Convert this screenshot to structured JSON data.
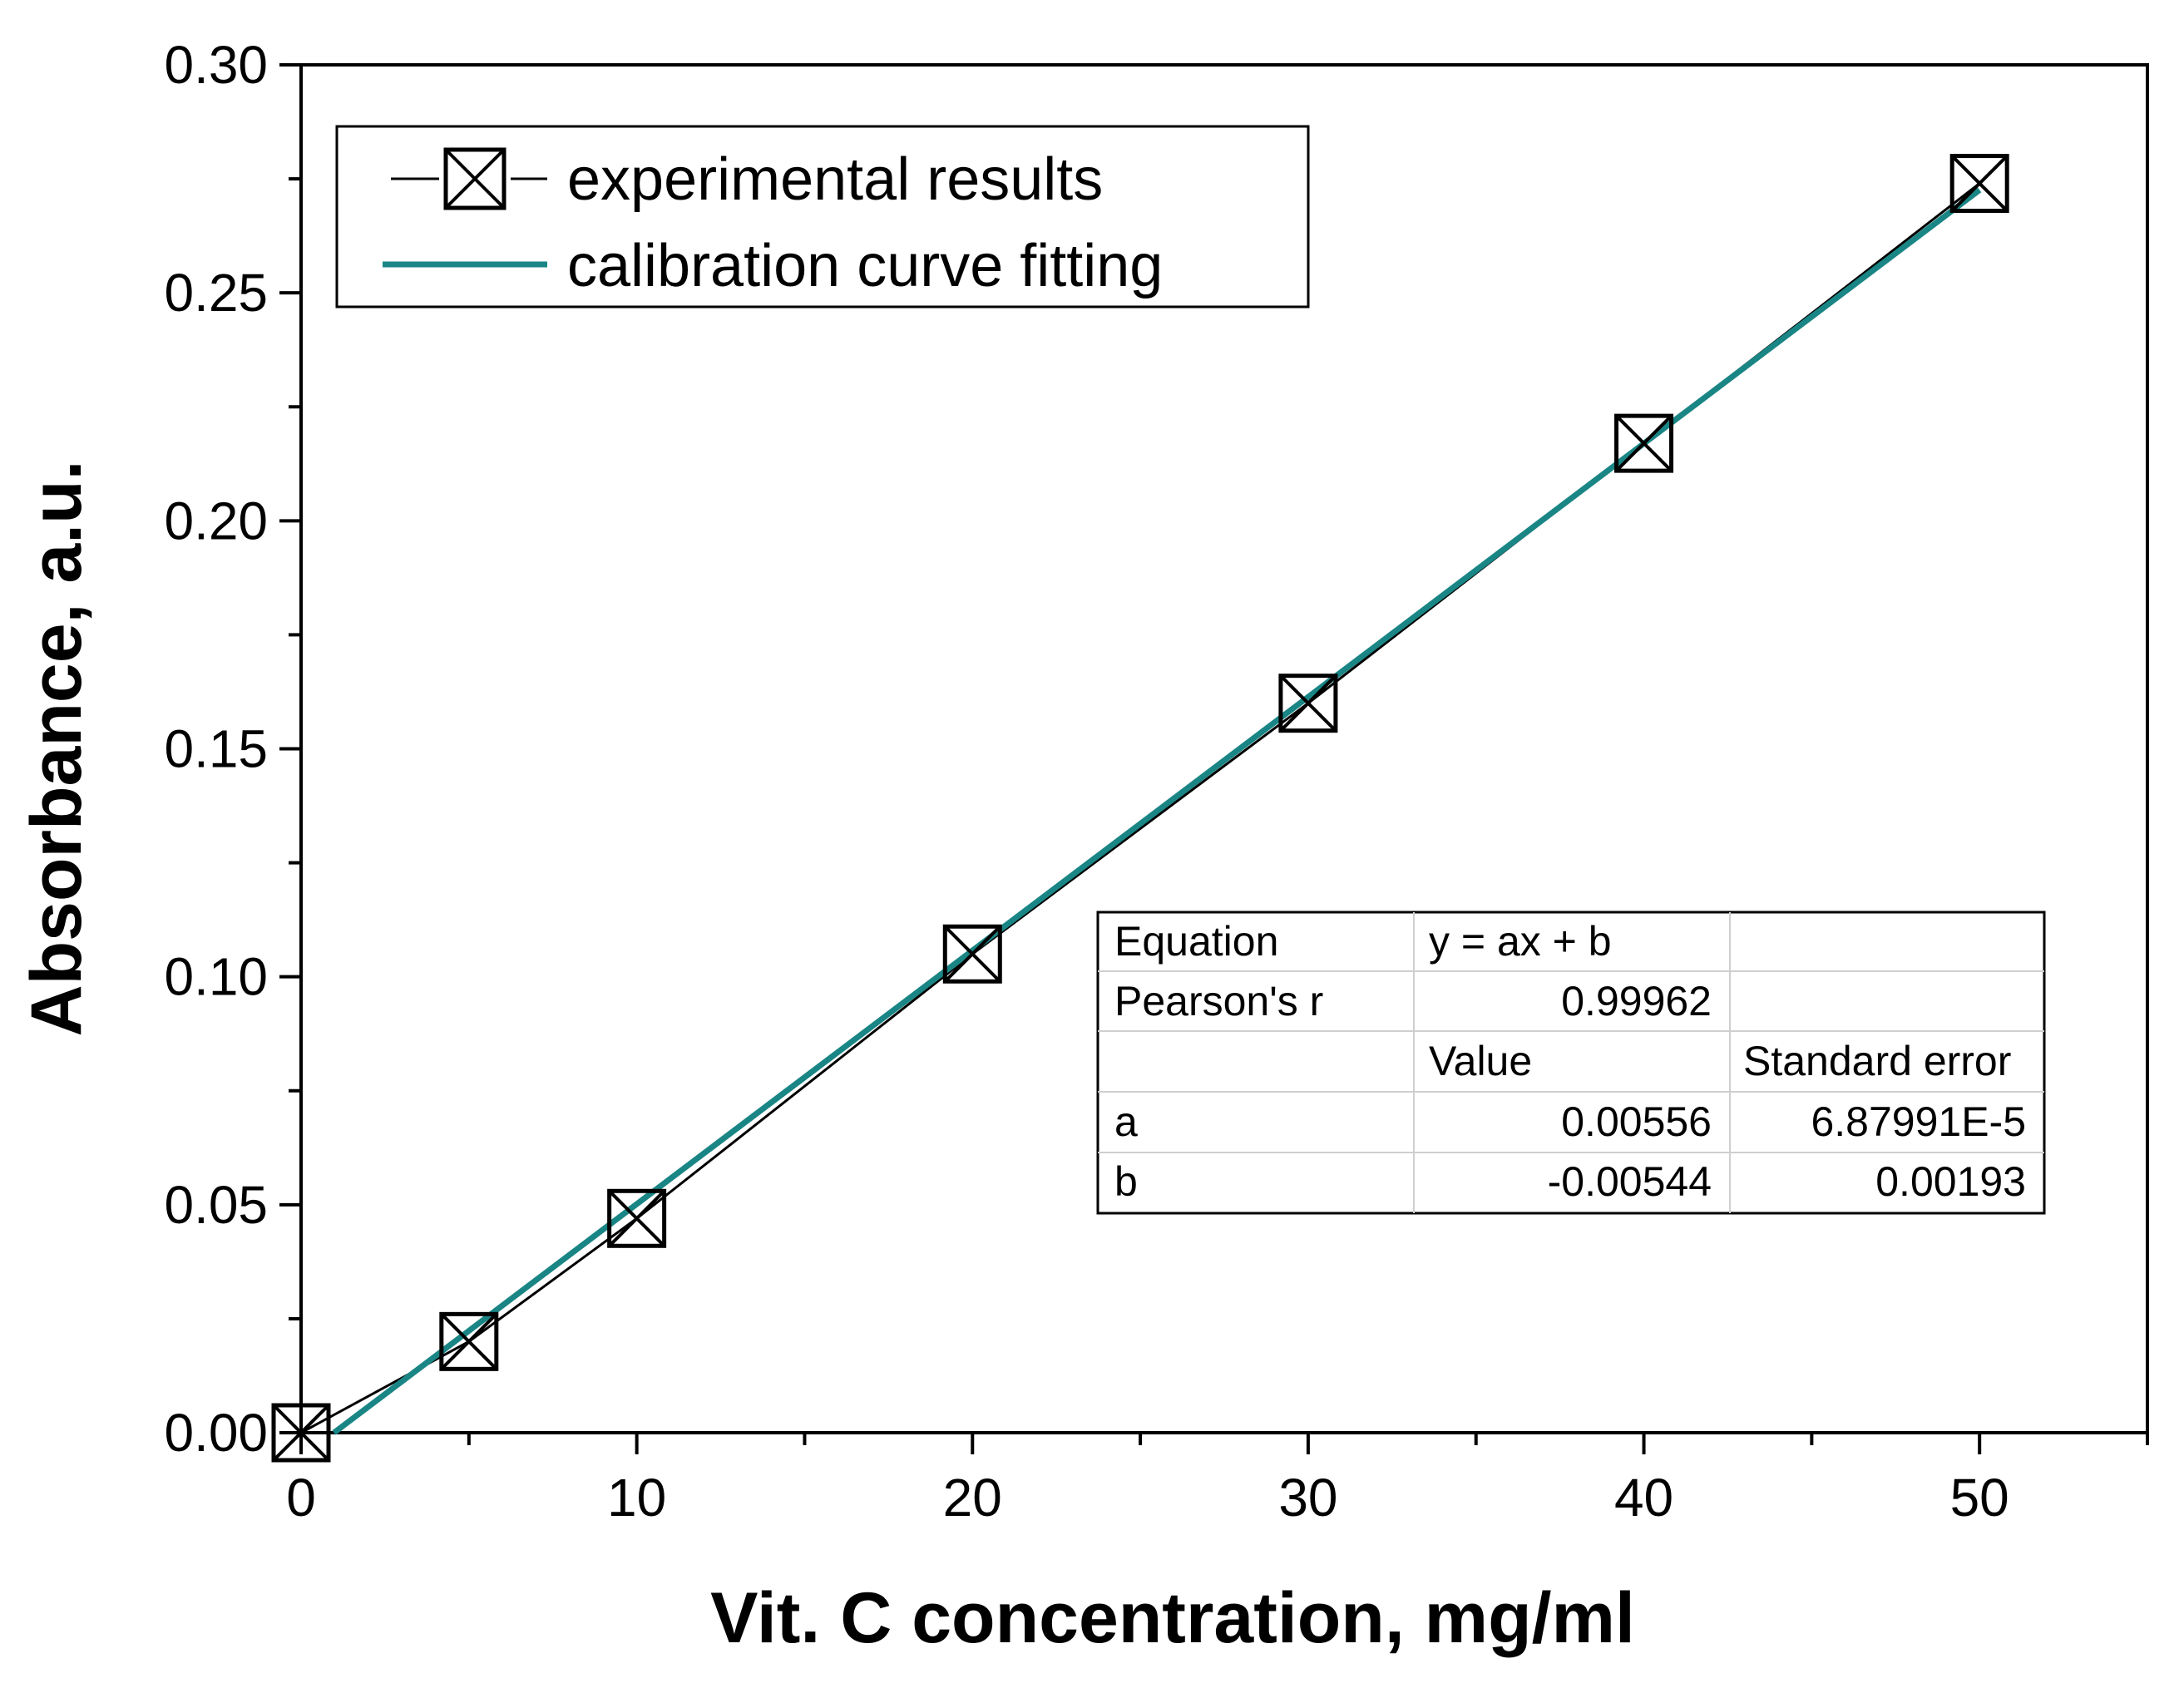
{
  "chart_data": {
    "type": "line",
    "title": "",
    "xlabel": "Vit. C concentration, mg/ml",
    "ylabel": "Absorbance, a.u.",
    "xlim": [
      0,
      55
    ],
    "ylim": [
      0,
      0.3
    ],
    "x_ticks": [
      0,
      10,
      20,
      30,
      40,
      50
    ],
    "x_tick_labels": [
      "0",
      "10",
      "20",
      "30",
      "40",
      "50"
    ],
    "x_minor_step": 5,
    "y_ticks": [
      0.0,
      0.05,
      0.1,
      0.15,
      0.2,
      0.25,
      0.3
    ],
    "y_tick_labels": [
      "0.00",
      "0.05",
      "0.10",
      "0.15",
      "0.20",
      "0.25",
      "0.30"
    ],
    "y_minor_step": 0.025,
    "grid": false,
    "legend_position": "top-left",
    "series": [
      {
        "name": "experimental results",
        "style": "line-with-markers",
        "marker": "boxed-x",
        "color": "#000000",
        "x": [
          0,
          5,
          10,
          20,
          30,
          40,
          50
        ],
        "y": [
          0.0,
          0.02,
          0.047,
          0.105,
          0.16,
          0.217,
          0.274
        ]
      },
      {
        "name": "calibration curve fitting",
        "style": "line",
        "color": "#1a8585",
        "x": [
          0.98,
          50
        ],
        "y": [
          0.0,
          0.27256
        ]
      }
    ],
    "fit_table": {
      "equation_label": "Equation",
      "equation": "y = ax + b",
      "pearson_label": "Pearson's r",
      "pearson_value": "0.99962",
      "value_header": "Value",
      "stderr_header": "Standard error",
      "rows": [
        {
          "param": "a",
          "value": "0.00556",
          "stderr": "6.87991E-5"
        },
        {
          "param": "b",
          "value": "-0.00544",
          "stderr": "0.00193"
        }
      ]
    }
  }
}
